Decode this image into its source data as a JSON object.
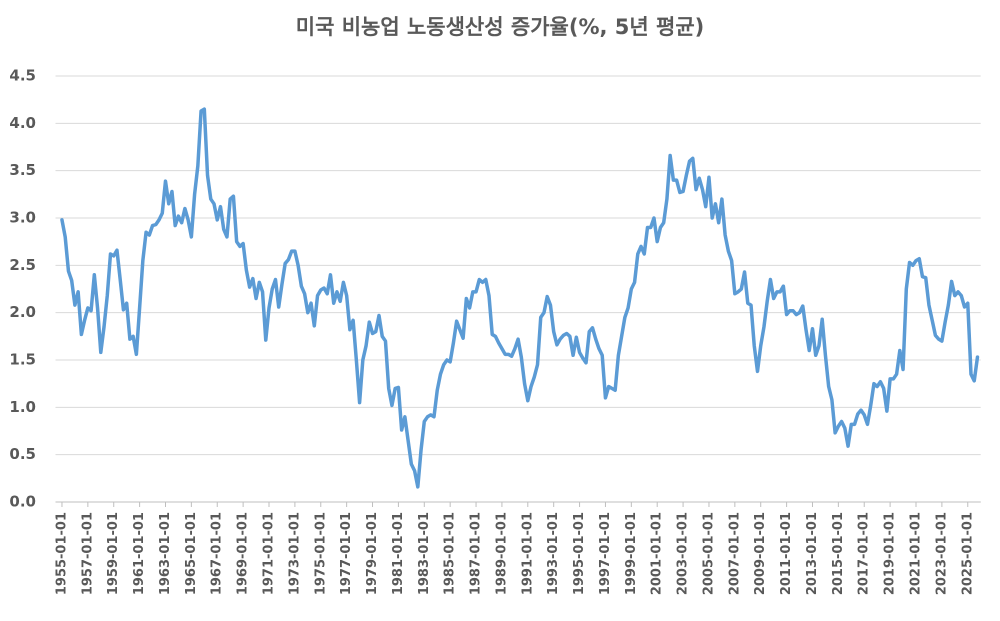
{
  "chart_data": {
    "type": "line",
    "title": "미국 비농업 노동생산성 증가율(%, 5년 평균)",
    "color": "#5b9bd5",
    "grid": true,
    "xlim": [
      1954.5,
      2026.0
    ],
    "ylim": [
      0,
      4.5
    ],
    "xticks": [
      {
        "value": 1955,
        "label": "1955-01-01"
      },
      {
        "value": 1957,
        "label": "1957-01-01"
      },
      {
        "value": 1959,
        "label": "1959-01-01"
      },
      {
        "value": 1961,
        "label": "1961-01-01"
      },
      {
        "value": 1963,
        "label": "1963-01-01"
      },
      {
        "value": 1965,
        "label": "1965-01-01"
      },
      {
        "value": 1967,
        "label": "1967-01-01"
      },
      {
        "value": 1969,
        "label": "1969-01-01"
      },
      {
        "value": 1971,
        "label": "1971-01-01"
      },
      {
        "value": 1973,
        "label": "1973-01-01"
      },
      {
        "value": 1975,
        "label": "1975-01-01"
      },
      {
        "value": 1977,
        "label": "1977-01-01"
      },
      {
        "value": 1979,
        "label": "1979-01-01"
      },
      {
        "value": 1981,
        "label": "1981-01-01"
      },
      {
        "value": 1983,
        "label": "1983-01-01"
      },
      {
        "value": 1985,
        "label": "1985-01-01"
      },
      {
        "value": 1987,
        "label": "1987-01-01"
      },
      {
        "value": 1989,
        "label": "1989-01-01"
      },
      {
        "value": 1991,
        "label": "1991-01-01"
      },
      {
        "value": 1993,
        "label": "1993-01-01"
      },
      {
        "value": 1995,
        "label": "1995-01-01"
      },
      {
        "value": 1997,
        "label": "1997-01-01"
      },
      {
        "value": 1999,
        "label": "1999-01-01"
      },
      {
        "value": 2001,
        "label": "2001-01-01"
      },
      {
        "value": 2003,
        "label": "2003-01-01"
      },
      {
        "value": 2005,
        "label": "2005-01-01"
      },
      {
        "value": 2007,
        "label": "2007-01-01"
      },
      {
        "value": 2009,
        "label": "2009-01-01"
      },
      {
        "value": 2011,
        "label": "2011-01-01"
      },
      {
        "value": 2013,
        "label": "2013-01-01"
      },
      {
        "value": 2015,
        "label": "2015-01-01"
      },
      {
        "value": 2017,
        "label": "2017-01-01"
      },
      {
        "value": 2019,
        "label": "2019-01-01"
      },
      {
        "value": 2021,
        "label": "2021-01-01"
      },
      {
        "value": 2023,
        "label": "2023-01-01"
      },
      {
        "value": 2025,
        "label": "2025-01-01"
      }
    ],
    "yticks": [
      {
        "value": 0,
        "label": "0.0"
      },
      0.5,
      {
        "value": 1,
        "label": "1.0"
      },
      1.5,
      {
        "value": 2,
        "label": "2.0"
      },
      2.5,
      {
        "value": 3,
        "label": "3.0"
      },
      3.5,
      {
        "value": 4,
        "label": "4.0"
      },
      4.5
    ],
    "x": [
      1955,
      1955.25,
      1955.5,
      1955.75,
      1956,
      1956.25,
      1956.5,
      1956.75,
      1957,
      1957.25,
      1957.5,
      1957.75,
      1958,
      1958.25,
      1958.5,
      1958.75,
      1959,
      1959.25,
      1959.5,
      1959.75,
      1960,
      1960.25,
      1960.5,
      1960.75,
      1961,
      1961.25,
      1961.5,
      1961.75,
      1962,
      1962.25,
      1962.5,
      1962.75,
      1963,
      1963.25,
      1963.5,
      1963.75,
      1964,
      1964.25,
      1964.5,
      1964.75,
      1965,
      1965.25,
      1965.5,
      1965.75,
      1966,
      1966.25,
      1966.5,
      1966.75,
      1967,
      1967.25,
      1967.5,
      1967.75,
      1968,
      1968.25,
      1968.5,
      1968.75,
      1969,
      1969.25,
      1969.5,
      1969.75,
      1970,
      1970.25,
      1970.5,
      1970.75,
      1971,
      1971.25,
      1971.5,
      1971.75,
      1972,
      1972.25,
      1972.5,
      1972.75,
      1973,
      1973.25,
      1973.5,
      1973.75,
      1974,
      1974.25,
      1974.5,
      1974.75,
      1975,
      1975.25,
      1975.5,
      1975.75,
      1976,
      1976.25,
      1976.5,
      1976.75,
      1977,
      1977.25,
      1977.5,
      1977.75,
      1978,
      1978.25,
      1978.5,
      1978.75,
      1979,
      1979.25,
      1979.5,
      1979.75,
      1980,
      1980.25,
      1980.5,
      1980.75,
      1981,
      1981.25,
      1981.5,
      1981.75,
      1982,
      1982.25,
      1982.5,
      1982.75,
      1983,
      1983.25,
      1983.5,
      1983.75,
      1984,
      1984.25,
      1984.5,
      1984.75,
      1985,
      1985.25,
      1985.5,
      1985.75,
      1986,
      1986.25,
      1986.5,
      1986.75,
      1987,
      1987.25,
      1987.5,
      1987.75,
      1988,
      1988.25,
      1988.5,
      1988.75,
      1989,
      1989.25,
      1989.5,
      1989.75,
      1990,
      1990.25,
      1990.5,
      1990.75,
      1991,
      1991.25,
      1991.5,
      1991.75,
      1992,
      1992.25,
      1992.5,
      1992.75,
      1993,
      1993.25,
      1993.5,
      1993.75,
      1994,
      1994.25,
      1994.5,
      1994.75,
      1995,
      1995.25,
      1995.5,
      1995.75,
      1996,
      1996.25,
      1996.5,
      1996.75,
      1997,
      1997.25,
      1997.5,
      1997.75,
      1998,
      1998.25,
      1998.5,
      1998.75,
      1999,
      1999.25,
      1999.5,
      1999.75,
      2000,
      2000.25,
      2000.5,
      2000.75,
      2001,
      2001.25,
      2001.5,
      2001.75,
      2002,
      2002.25,
      2002.5,
      2002.75,
      2003,
      2003.25,
      2003.5,
      2003.75,
      2004,
      2004.25,
      2004.5,
      2004.75,
      2005,
      2005.25,
      2005.5,
      2005.75,
      2006,
      2006.25,
      2006.5,
      2006.75,
      2007,
      2007.25,
      2007.5,
      2007.75,
      2008,
      2008.25,
      2008.5,
      2008.75,
      2009,
      2009.25,
      2009.5,
      2009.75,
      2010,
      2010.25,
      2010.5,
      2010.75,
      2011,
      2011.25,
      2011.5,
      2011.75,
      2012,
      2012.25,
      2012.5,
      2012.75,
      2013,
      2013.25,
      2013.5,
      2013.75,
      2014,
      2014.25,
      2014.5,
      2014.75,
      2015,
      2015.25,
      2015.5,
      2015.75,
      2016,
      2016.25,
      2016.5,
      2016.75,
      2017,
      2017.25,
      2017.5,
      2017.75,
      2018,
      2018.25,
      2018.5,
      2018.75,
      2019,
      2019.25,
      2019.5,
      2019.75,
      2020,
      2020.25,
      2020.5,
      2020.75,
      2021,
      2021.25,
      2021.5,
      2021.75,
      2022,
      2022.25,
      2022.5,
      2022.75,
      2023,
      2023.25,
      2023.5,
      2023.75,
      2024,
      2024.25,
      2024.5,
      2024.75,
      2025,
      2025.25,
      2025.5,
      2025.75
    ],
    "values": [
      2.98,
      2.8,
      2.44,
      2.34,
      2.08,
      2.22,
      1.77,
      1.92,
      2.05,
      2.02,
      2.4,
      2.05,
      1.58,
      1.85,
      2.18,
      2.62,
      2.6,
      2.66,
      2.35,
      2.03,
      2.1,
      1.72,
      1.75,
      1.56,
      2.05,
      2.55,
      2.85,
      2.82,
      2.92,
      2.93,
      2.98,
      3.05,
      3.39,
      3.15,
      3.28,
      2.92,
      3.02,
      2.95,
      3.1,
      2.98,
      2.8,
      3.25,
      3.55,
      4.13,
      4.15,
      3.45,
      3.2,
      3.15,
      2.98,
      3.12,
      2.88,
      2.8,
      3.2,
      3.23,
      2.75,
      2.7,
      2.73,
      2.45,
      2.27,
      2.36,
      2.15,
      2.32,
      2.22,
      1.71,
      2.05,
      2.25,
      2.35,
      2.06,
      2.3,
      2.52,
      2.56,
      2.65,
      2.65,
      2.5,
      2.28,
      2.2,
      2.0,
      2.1,
      1.86,
      2.18,
      2.24,
      2.26,
      2.2,
      2.4,
      2.1,
      2.22,
      2.12,
      2.32,
      2.18,
      1.82,
      1.92,
      1.5,
      1.05,
      1.5,
      1.65,
      1.9,
      1.78,
      1.8,
      1.97,
      1.75,
      1.7,
      1.2,
      1.02,
      1.2,
      1.21,
      0.76,
      0.9,
      0.65,
      0.4,
      0.33,
      0.16,
      0.55,
      0.85,
      0.9,
      0.92,
      0.9,
      1.18,
      1.35,
      1.45,
      1.5,
      1.48,
      1.68,
      1.91,
      1.82,
      1.73,
      2.15,
      2.05,
      2.22,
      2.22,
      2.35,
      2.32,
      2.35,
      2.18,
      1.77,
      1.75,
      1.68,
      1.62,
      1.56,
      1.56,
      1.54,
      1.62,
      1.72,
      1.53,
      1.25,
      1.07,
      1.22,
      1.32,
      1.45,
      1.95,
      2.0,
      2.17,
      2.08,
      1.8,
      1.66,
      1.72,
      1.76,
      1.78,
      1.75,
      1.55,
      1.74,
      1.58,
      1.52,
      1.47,
      1.8,
      1.84,
      1.72,
      1.62,
      1.55,
      1.1,
      1.22,
      1.2,
      1.18,
      1.55,
      1.75,
      1.95,
      2.05,
      2.25,
      2.32,
      2.62,
      2.7,
      2.62,
      2.9,
      2.9,
      3.0,
      2.75,
      2.9,
      2.95,
      3.2,
      3.66,
      3.4,
      3.4,
      3.27,
      3.28,
      3.45,
      3.6,
      3.63,
      3.3,
      3.42,
      3.3,
      3.12,
      3.43,
      3.0,
      3.15,
      2.95,
      3.2,
      2.82,
      2.65,
      2.55,
      2.2,
      2.22,
      2.25,
      2.43,
      2.1,
      2.08,
      1.65,
      1.38,
      1.65,
      1.85,
      2.12,
      2.35,
      2.15,
      2.22,
      2.22,
      2.28,
      1.98,
      2.02,
      2.02,
      1.98,
      2.0,
      2.07,
      1.82,
      1.6,
      1.83,
      1.55,
      1.65,
      1.93,
      1.55,
      1.22,
      1.08,
      0.73,
      0.8,
      0.85,
      0.78,
      0.59,
      0.82,
      0.82,
      0.93,
      0.97,
      0.92,
      0.82,
      1.02,
      1.25,
      1.22,
      1.27,
      1.2,
      0.96,
      1.3,
      1.3,
      1.35,
      1.6,
      1.4,
      2.25,
      2.53,
      2.5,
      2.55,
      2.57,
      2.38,
      2.37,
      2.08,
      1.92,
      1.76,
      1.72,
      1.7,
      1.9,
      2.08,
      2.33,
      2.18,
      2.22,
      2.18,
      2.06,
      2.1,
      1.35,
      1.28,
      1.53
    ]
  }
}
